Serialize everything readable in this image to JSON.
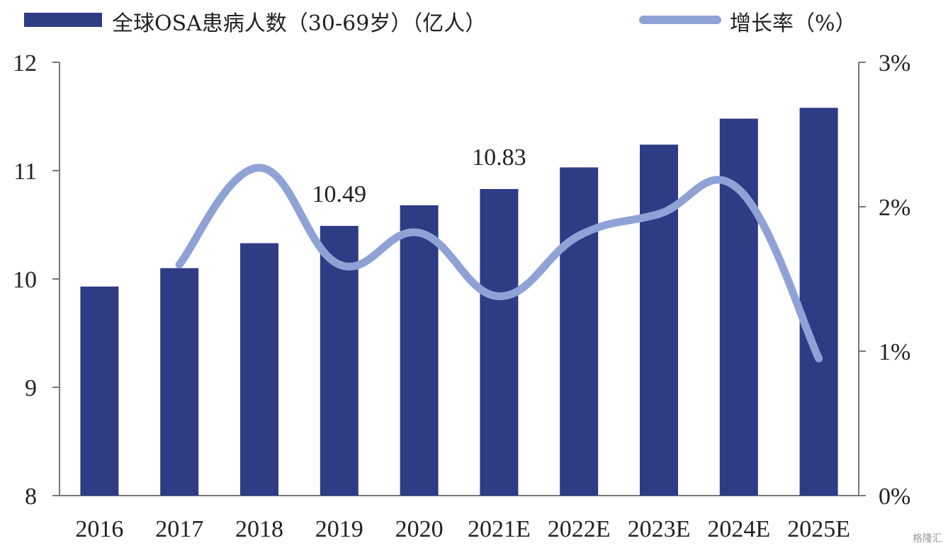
{
  "legend": {
    "bar_label": "全球OSA患病人数（30-69岁）（亿人）",
    "line_label": "增长率（%）"
  },
  "watermark": "格隆汇",
  "chart_data": {
    "type": "bar",
    "categories": [
      "2016",
      "2017",
      "2018",
      "2019",
      "2020",
      "2021E",
      "2022E",
      "2023E",
      "2024E",
      "2025E"
    ],
    "series": [
      {
        "name": "全球OSA患病人数（30-69岁）（亿人）",
        "type": "bar",
        "axis": "left",
        "values": [
          9.93,
          10.1,
          10.33,
          10.49,
          10.68,
          10.83,
          11.03,
          11.24,
          11.48,
          11.58
        ],
        "color": "#2e3b85"
      },
      {
        "name": "增长率（%）",
        "type": "line",
        "axis": "right",
        "values": [
          null,
          1.6,
          2.27,
          1.6,
          1.82,
          1.38,
          1.8,
          1.95,
          2.12,
          0.95
        ],
        "color": "#8fa2d6"
      }
    ],
    "data_labels": [
      {
        "category": "2019",
        "text": "10.49"
      },
      {
        "category": "2021E",
        "text": "10.83"
      }
    ],
    "y_left": {
      "min": 8,
      "max": 12,
      "ticks": [
        "8",
        "9",
        "10",
        "11",
        "12"
      ],
      "values": [
        8,
        9,
        10,
        11,
        12
      ]
    },
    "y_right": {
      "min": 0,
      "max": 3,
      "ticks": [
        "0%",
        "1%",
        "2%",
        "3%"
      ],
      "values": [
        0,
        1,
        2,
        3
      ]
    },
    "grid": false,
    "legend_position": "top"
  }
}
